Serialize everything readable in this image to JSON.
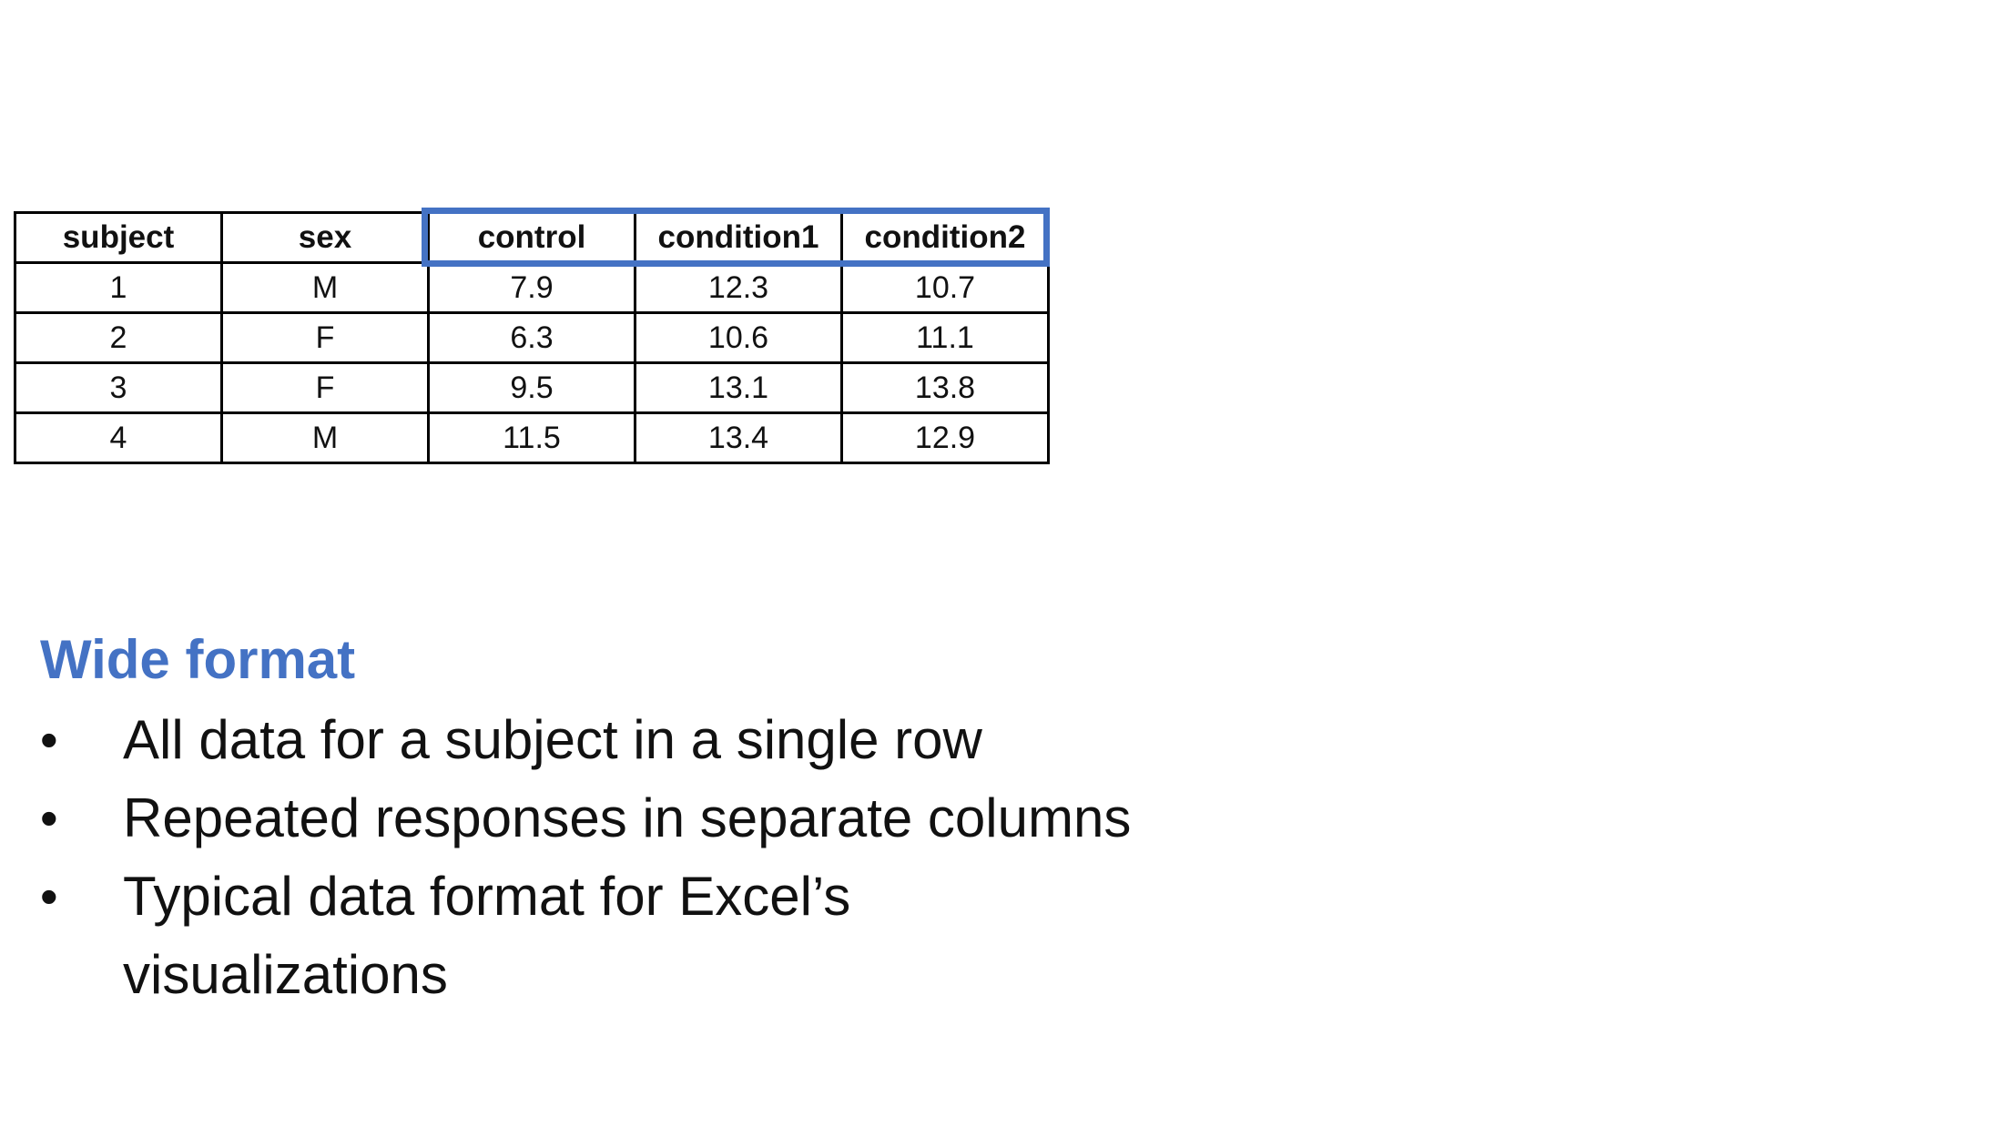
{
  "table": {
    "headers": [
      "subject",
      "sex",
      "control",
      "condition1",
      "condition2"
    ],
    "rows": [
      [
        "1",
        "M",
        "7.9",
        "12.3",
        "10.7"
      ],
      [
        "2",
        "F",
        "6.3",
        "10.6",
        "11.1"
      ],
      [
        "3",
        "F",
        "9.5",
        "13.1",
        "13.8"
      ],
      [
        "4",
        "M",
        "11.5",
        "13.4",
        "12.9"
      ]
    ],
    "highlight_color": "#4472C4"
  },
  "section": {
    "heading": "Wide format",
    "heading_color": "#4472C4",
    "bullet_symbol": "•",
    "bullets": [
      "All data for a subject in a single row",
      "Repeated responses in separate columns",
      "Typical data format for Excel’s visualizations"
    ]
  }
}
